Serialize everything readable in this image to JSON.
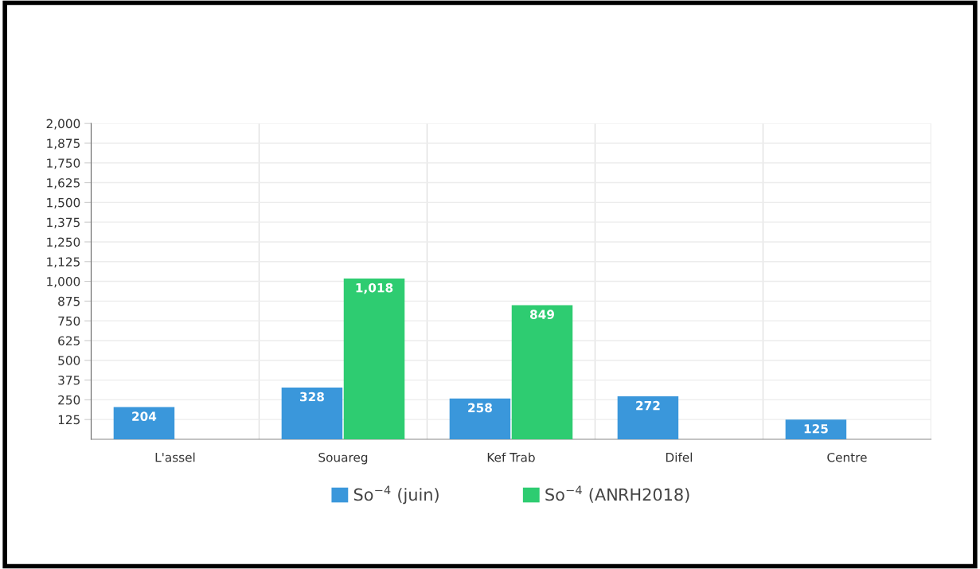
{
  "chart_data": {
    "type": "bar",
    "categories": [
      "L'assel",
      "Souareg",
      "Kef Trab",
      "Difel",
      "Centre"
    ],
    "series": [
      {
        "name": "So$^{−4}$ (juin)",
        "color": "#3a97db",
        "values": [
          204,
          328,
          258,
          272,
          125
        ],
        "value_labels": [
          "204",
          "328",
          "258",
          "272",
          "125"
        ]
      },
      {
        "name": "So$^{−4}$ (ANRH2018)",
        "color": "#2ecc71",
        "values": [
          null,
          1018,
          849,
          null,
          null
        ],
        "value_labels": [
          null,
          "1,018",
          "849",
          null,
          null
        ]
      }
    ],
    "ylim": [
      0,
      2000
    ],
    "yticks": [
      125,
      250,
      375,
      500,
      625,
      750,
      875,
      {
        "value": 1000,
        "label": "1,000"
      },
      {
        "value": 1125,
        "label": "1,125"
      },
      {
        "value": 1250,
        "label": "1,250"
      },
      {
        "value": 1375,
        "label": "1,375"
      },
      {
        "value": 1500,
        "label": "1,500"
      },
      {
        "value": 1625,
        "label": "1,625"
      },
      {
        "value": 1750,
        "label": "1,750"
      },
      {
        "value": 1875,
        "label": "1,875"
      },
      {
        "value": 2000,
        "label": "2,000"
      }
    ],
    "grid": true,
    "legend": "bottom"
  }
}
